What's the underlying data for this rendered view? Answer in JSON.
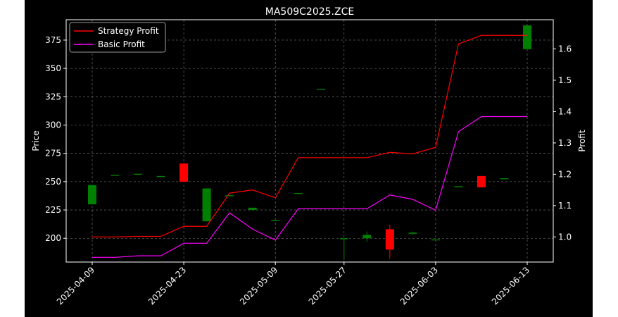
{
  "chart_data": {
    "type": "candlestick+line",
    "title": "MA509C2025.ZCE",
    "ylabel": "Price",
    "y2label": "Profit",
    "x_tick_labels": [
      "2025-04-09",
      "2025-04-23",
      "2025-05-09",
      "2025-05-27",
      "2025-06-03",
      "2025-06-13"
    ],
    "ylim": [
      179,
      393
    ],
    "y_ticks": [
      200,
      225,
      250,
      275,
      300,
      325,
      350,
      375
    ],
    "y2lim": [
      0.92,
      1.693
    ],
    "y2_ticks": [
      1.0,
      1.1,
      1.2,
      1.3,
      1.4,
      1.5,
      1.6
    ],
    "grid": true,
    "legend": {
      "placement": "top-left",
      "entries": [
        {
          "label": "Strategy Profit",
          "color": "#ff0000"
        },
        {
          "label": "Basic Profit",
          "color": "#ff00ff"
        }
      ]
    },
    "candles": [
      {
        "date": "2025-04-09",
        "open": 230,
        "high": 247,
        "low": 230,
        "close": 247
      },
      {
        "date": "2025-04-10",
        "open": 256,
        "high": 256,
        "low": 256,
        "close": 256
      },
      {
        "date": "2025-04-11",
        "open": 257,
        "high": 257,
        "low": 257,
        "close": 257
      },
      {
        "date": "2025-04-14",
        "open": 255,
        "high": 255,
        "low": 255,
        "close": 255
      },
      {
        "date": "2025-04-23",
        "open": 266,
        "high": 266,
        "low": 250,
        "close": 250
      },
      {
        "date": "2025-04-24",
        "open": 215,
        "high": 244,
        "low": 215,
        "close": 244
      },
      {
        "date": "2025-04-28",
        "open": 238,
        "high": 238,
        "low": 238,
        "close": 238
      },
      {
        "date": "2025-04-29",
        "open": 225,
        "high": 227,
        "low": 225,
        "close": 227
      },
      {
        "date": "2025-05-09",
        "open": 216,
        "high": 216,
        "low": 216,
        "close": 216
      },
      {
        "date": "2025-05-12",
        "open": 240,
        "high": 240,
        "low": 240,
        "close": 240
      },
      {
        "date": "2025-05-13",
        "open": 332,
        "high": 332,
        "low": 332,
        "close": 332
      },
      {
        "date": "2025-05-27",
        "open": 200,
        "high": 200,
        "low": 181,
        "close": 200
      },
      {
        "date": "2025-05-28",
        "open": 200,
        "high": 206,
        "low": 197,
        "close": 203
      },
      {
        "date": "2025-05-29",
        "open": 208,
        "high": 212,
        "low": 182,
        "close": 190
      },
      {
        "date": "2025-05-30",
        "open": 204,
        "high": 206,
        "low": 203,
        "close": 205
      },
      {
        "date": "2025-06-03",
        "open": 199,
        "high": 199,
        "low": 199,
        "close": 199
      },
      {
        "date": "2025-06-04",
        "open": 246,
        "high": 246,
        "low": 246,
        "close": 246
      },
      {
        "date": "2025-06-05",
        "open": 255,
        "high": 255,
        "low": 245,
        "close": 245
      },
      {
        "date": "2025-06-06",
        "open": 253,
        "high": 253,
        "low": 253,
        "close": 253
      },
      {
        "date": "2025-06-13",
        "open": 367,
        "high": 388,
        "low": 367,
        "close": 388
      }
    ],
    "series": [
      {
        "name": "Strategy Profit",
        "color": "#ff0000",
        "x": [
          "2025-04-09",
          "2025-04-10",
          "2025-04-11",
          "2025-04-14",
          "2025-04-23",
          "2025-04-24",
          "2025-04-28",
          "2025-04-29",
          "2025-05-09",
          "2025-05-12",
          "2025-05-13",
          "2025-05-27",
          "2025-05-28",
          "2025-05-29",
          "2025-05-30",
          "2025-06-03",
          "2025-06-04",
          "2025-06-05",
          "2025-06-06",
          "2025-06-13"
        ],
        "values": [
          1.0,
          1.0,
          1.002,
          1.002,
          1.034,
          1.034,
          1.14,
          1.15,
          1.125,
          1.253,
          1.253,
          1.253,
          1.253,
          1.27,
          1.265,
          1.286,
          1.616,
          1.643,
          1.643,
          1.643
        ]
      },
      {
        "name": "Basic Profit",
        "color": "#ff00ff",
        "x": [
          "2025-04-09",
          "2025-04-10",
          "2025-04-11",
          "2025-04-14",
          "2025-04-23",
          "2025-04-24",
          "2025-04-28",
          "2025-04-29",
          "2025-05-09",
          "2025-05-12",
          "2025-05-13",
          "2025-05-27",
          "2025-05-28",
          "2025-05-29",
          "2025-05-30",
          "2025-06-03",
          "2025-06-04",
          "2025-06-05",
          "2025-06-06",
          "2025-06-13"
        ],
        "values": [
          0.935,
          0.935,
          0.94,
          0.94,
          0.98,
          0.98,
          1.077,
          1.025,
          0.99,
          1.09,
          1.09,
          1.09,
          1.09,
          1.134,
          1.12,
          1.085,
          1.336,
          1.384,
          1.384,
          1.384
        ]
      }
    ]
  },
  "colors": {
    "background": "#000000",
    "foreground": "#ffffff",
    "grid": "#808080",
    "up": "#008000",
    "down": "#ff0000"
  }
}
